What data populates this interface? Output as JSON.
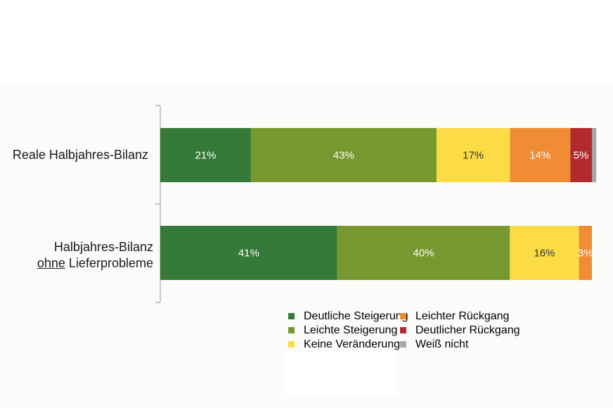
{
  "chart_data": {
    "type": "bar",
    "orientation": "horizontal",
    "stacked": true,
    "categories": [
      "Reale Halbjahres-Bilanz",
      "Halbjahres-Bilanz ohne Lieferprobleme"
    ],
    "category_lines": [
      [
        "Reale Halbjahres-Bilanz"
      ],
      [
        "Halbjahres-Bilanz",
        "ohne",
        " Lieferprobleme"
      ]
    ],
    "series": [
      {
        "name": "Deutliche Steigerung",
        "color": "#357a38",
        "values": [
          21,
          41
        ],
        "labels": [
          "21%",
          "41%"
        ]
      },
      {
        "name": "Leichte Steigerung",
        "color": "#76982f",
        "values": [
          43,
          40
        ],
        "labels": [
          "43%",
          "40%"
        ]
      },
      {
        "name": "Keine Veränderung",
        "color": "#fcdc45",
        "values": [
          17,
          16
        ],
        "labels": [
          "17%",
          "16%"
        ]
      },
      {
        "name": "Leichter Rückgang",
        "color": "#ef8c34",
        "values": [
          14,
          3
        ],
        "labels": [
          "14%",
          "3%"
        ]
      },
      {
        "name": "Deutlicher Rückgang",
        "color": "#b22a2e",
        "values": [
          5,
          0
        ],
        "labels": [
          "5%",
          ""
        ]
      },
      {
        "name": "Weiß nicht",
        "color": "#a6a6a6",
        "values": [
          1,
          0
        ],
        "labels": [
          "",
          ""
        ]
      }
    ],
    "label_colors": [
      "#ffffff",
      "#ffffff",
      "#333333",
      "#ffffff",
      "#ffffff",
      "#ffffff"
    ],
    "xlim": [
      0,
      100
    ],
    "grid": false,
    "legend_position": "bottom"
  }
}
